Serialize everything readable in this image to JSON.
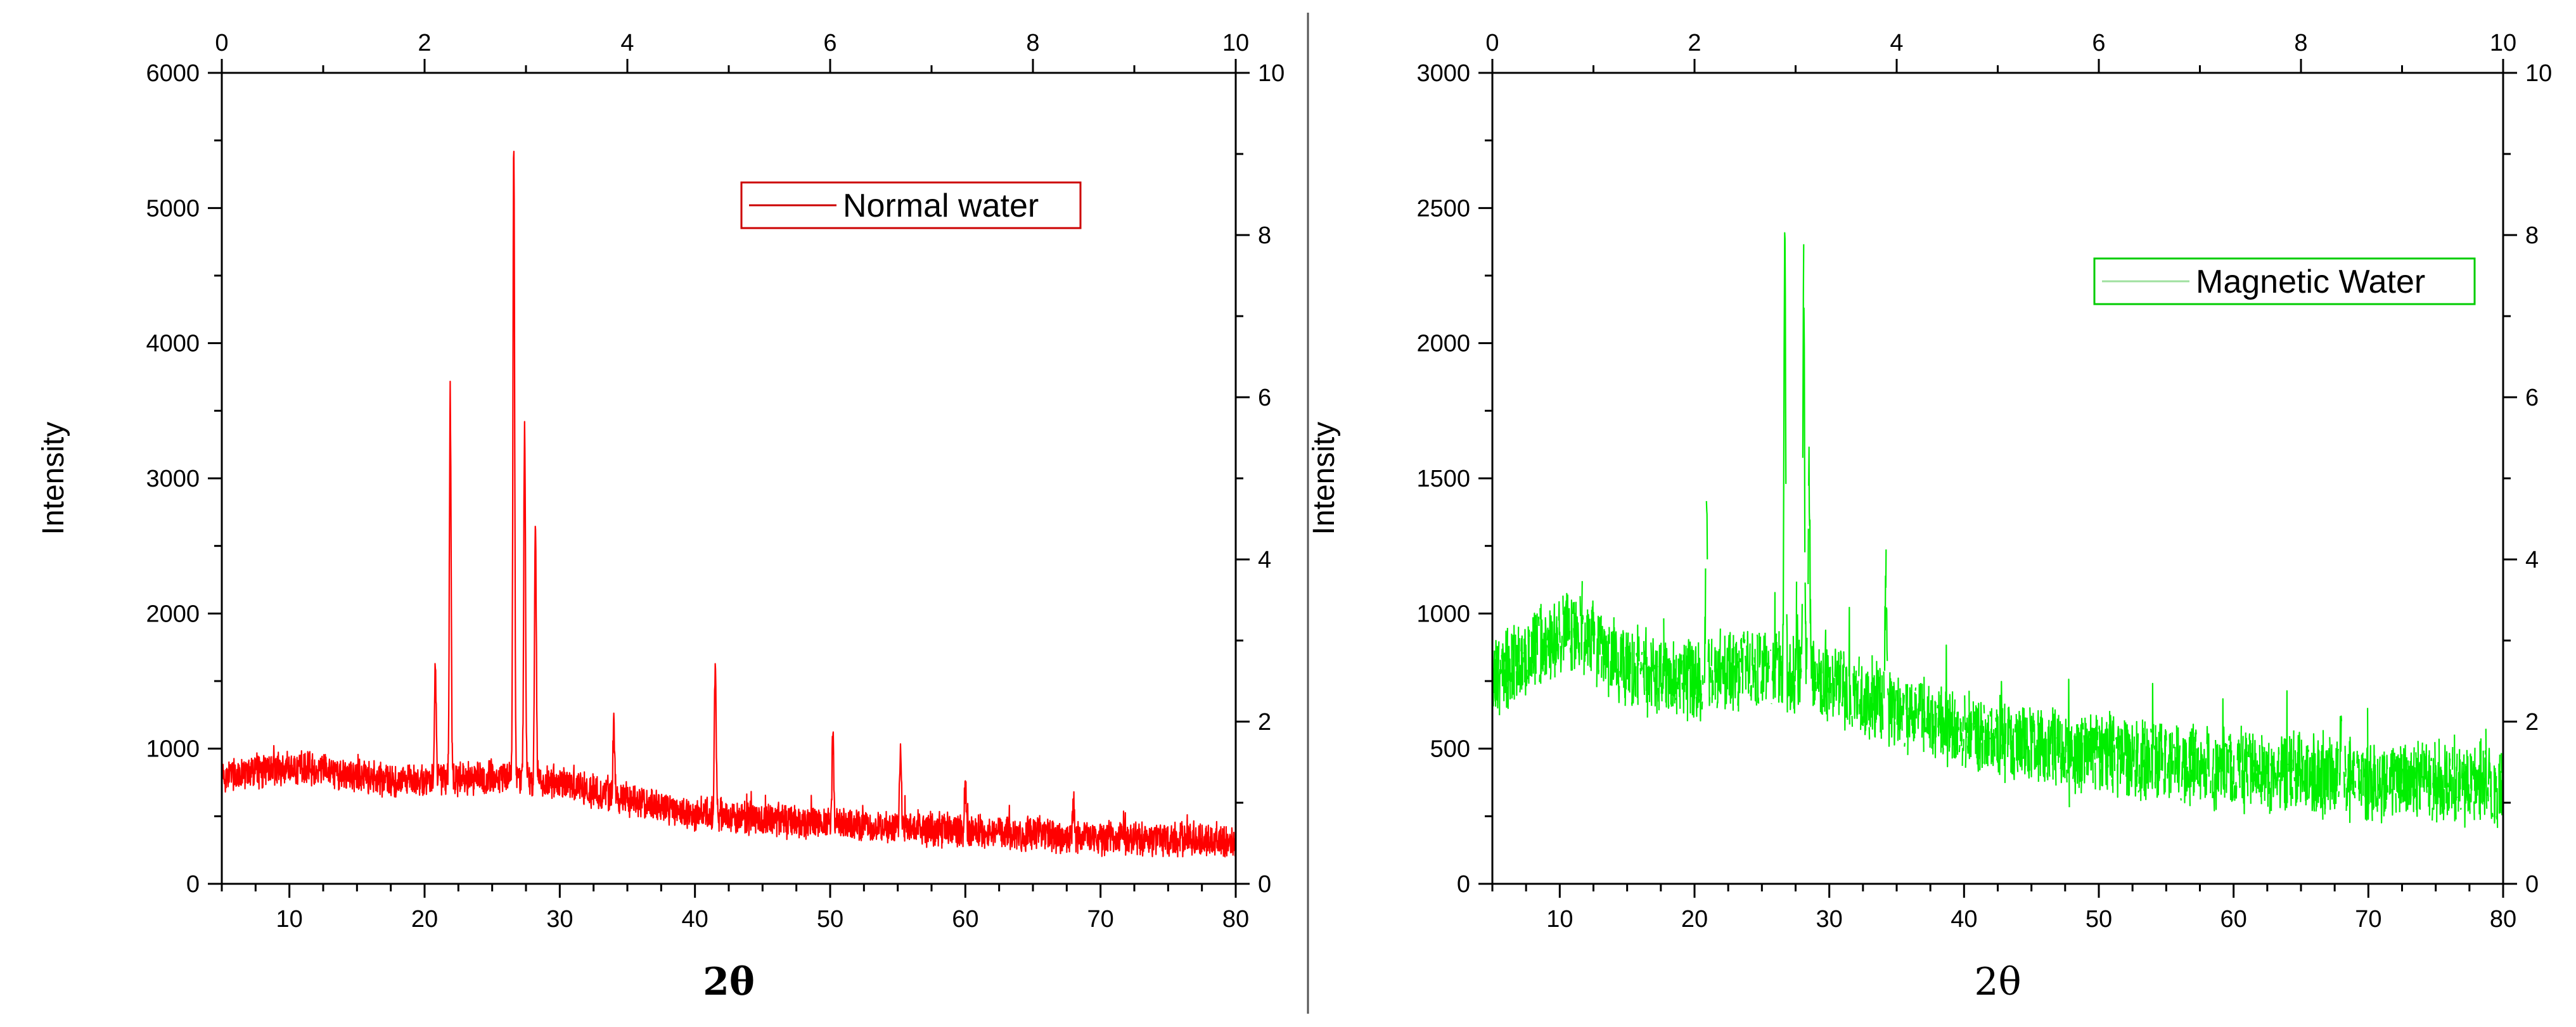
{
  "chart_data": [
    {
      "type": "line",
      "series": [
        {
          "name": "Normal water",
          "color": "#ff0000"
        }
      ],
      "legend": {
        "label": "Normal water",
        "border_color": "#cc0000",
        "line_color": "#cc0000",
        "placement": "top-right"
      },
      "xlabel": "2θ",
      "ylabel": "Intensity",
      "xlim": [
        5,
        80
      ],
      "ylim": [
        0,
        6000
      ],
      "x_ticks": [
        "10",
        "20",
        "30",
        "40",
        "50",
        "60",
        "70",
        "80"
      ],
      "y_ticks": [
        "0",
        "1000",
        "2000",
        "3000",
        "4000",
        "5000",
        "6000"
      ],
      "top_axis": {
        "range": [
          0,
          10
        ],
        "ticks": [
          "0",
          "2",
          "4",
          "6",
          "8",
          "10"
        ]
      },
      "right_axis": {
        "range": [
          0,
          10
        ],
        "ticks": [
          "0",
          "2",
          "4",
          "6",
          "8",
          "10"
        ]
      },
      "baseline": [
        [
          5,
          800
        ],
        [
          8,
          840
        ],
        [
          12,
          860
        ],
        [
          16,
          780
        ],
        [
          20,
          760
        ],
        [
          25,
          800
        ],
        [
          30,
          750
        ],
        [
          35,
          620
        ],
        [
          40,
          520
        ],
        [
          45,
          480
        ],
        [
          50,
          440
        ],
        [
          60,
          390
        ],
        [
          70,
          340
        ],
        [
          80,
          310
        ]
      ],
      "noise_amplitude": 140,
      "peaks": [
        {
          "x": 20.8,
          "y": 1580
        },
        {
          "x": 21.9,
          "y": 3580
        },
        {
          "x": 26.6,
          "y": 5480
        },
        {
          "x": 27.4,
          "y": 3420
        },
        {
          "x": 28.2,
          "y": 2600
        },
        {
          "x": 34.0,
          "y": 1200
        },
        {
          "x": 41.5,
          "y": 1640
        },
        {
          "x": 50.2,
          "y": 1090
        },
        {
          "x": 55.2,
          "y": 990
        },
        {
          "x": 60.0,
          "y": 760
        },
        {
          "x": 68.0,
          "y": 640
        }
      ]
    },
    {
      "type": "line",
      "series": [
        {
          "name": "Magnetic Water",
          "color": "#00ee00"
        }
      ],
      "legend": {
        "label": "Magnetic Water",
        "border_color": "#00cc00",
        "line_color": "#9fe09f",
        "placement": "top-right"
      },
      "xlabel": "2θ",
      "ylabel": "Intensity",
      "xlim": [
        5,
        80
      ],
      "ylim": [
        0,
        3000
      ],
      "x_ticks": [
        "10",
        "20",
        "30",
        "40",
        "50",
        "60",
        "70",
        "80"
      ],
      "y_ticks": [
        "0",
        "500",
        "1000",
        "1500",
        "2000",
        "2500",
        "3000"
      ],
      "top_axis": {
        "range": [
          0,
          10
        ],
        "ticks": [
          "0",
          "2",
          "4",
          "6",
          "8",
          "10"
        ]
      },
      "right_axis": {
        "range": [
          0,
          10
        ],
        "ticks": [
          "0",
          "2",
          "4",
          "6",
          "8",
          "10"
        ]
      },
      "baseline": [
        [
          5,
          760
        ],
        [
          8,
          850
        ],
        [
          11,
          950
        ],
        [
          15,
          800
        ],
        [
          20,
          750
        ],
        [
          25,
          800
        ],
        [
          30,
          740
        ],
        [
          35,
          640
        ],
        [
          40,
          560
        ],
        [
          45,
          520
        ],
        [
          50,
          480
        ],
        [
          60,
          420
        ],
        [
          70,
          380
        ],
        [
          80,
          360
        ]
      ],
      "noise_amplitude": 170,
      "peaks": [
        {
          "x": 20.9,
          "y": 1450
        },
        {
          "x": 26.7,
          "y": 2440
        },
        {
          "x": 28.1,
          "y": 2230
        },
        {
          "x": 28.5,
          "y": 1500
        },
        {
          "x": 34.2,
          "y": 1180
        },
        {
          "x": 68.0,
          "y": 680
        }
      ]
    }
  ]
}
